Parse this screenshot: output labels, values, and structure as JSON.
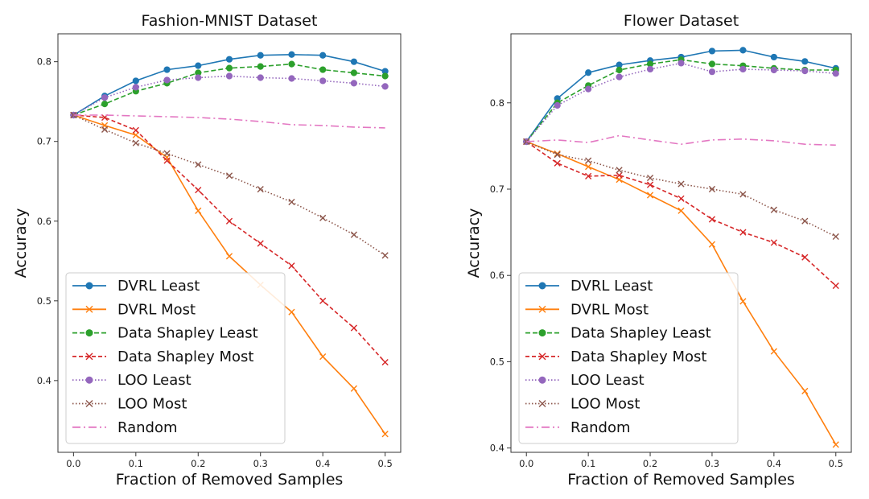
{
  "chart_data": [
    {
      "type": "line",
      "title": "Fashion-MNIST Dataset",
      "xlabel": "Fraction of Removed Samples",
      "ylabel": "Accuracy",
      "xlim": [
        -0.025,
        0.525
      ],
      "ylim": [
        0.31,
        0.835
      ],
      "xticks": [
        0.0,
        0.1,
        0.2,
        0.3,
        0.4,
        0.5
      ],
      "xtick_labels": [
        "0.0",
        "0.1",
        "0.2",
        "0.3",
        "0.4",
        "0.5"
      ],
      "yticks": [
        0.4,
        0.5,
        0.6,
        0.7,
        0.8
      ],
      "ytick_labels": [
        "0.4",
        "0.5",
        "0.6",
        "0.7",
        "0.8"
      ],
      "legend_position": "lower-left",
      "x": [
        0.0,
        0.05,
        0.1,
        0.15,
        0.2,
        0.25,
        0.3,
        0.35,
        0.4,
        0.45,
        0.5
      ],
      "series": [
        {
          "name": "DVRL Least",
          "values": [
            0.733,
            0.757,
            0.776,
            0.79,
            0.795,
            0.803,
            0.808,
            0.809,
            0.808,
            0.8,
            0.788
          ]
        },
        {
          "name": "DVRL Most",
          "values": [
            0.733,
            0.72,
            0.708,
            0.68,
            0.613,
            0.556,
            0.52,
            0.486,
            0.43,
            0.39,
            0.333
          ]
        },
        {
          "name": "Data Shapley Least",
          "values": [
            0.733,
            0.747,
            0.763,
            0.773,
            0.786,
            0.792,
            0.794,
            0.797,
            0.79,
            0.786,
            0.782
          ]
        },
        {
          "name": "Data Shapley Most",
          "values": [
            0.733,
            0.73,
            0.714,
            0.676,
            0.639,
            0.6,
            0.572,
            0.544,
            0.5,
            0.466,
            0.423
          ]
        },
        {
          "name": "LOO Least",
          "values": [
            0.733,
            0.755,
            0.768,
            0.777,
            0.78,
            0.782,
            0.78,
            0.779,
            0.776,
            0.773,
            0.769
          ]
        },
        {
          "name": "LOO Most",
          "values": [
            0.733,
            0.715,
            0.698,
            0.685,
            0.671,
            0.657,
            0.64,
            0.624,
            0.604,
            0.583,
            0.557
          ]
        },
        {
          "name": "Random",
          "values": [
            0.733,
            0.733,
            0.732,
            0.731,
            0.73,
            0.728,
            0.725,
            0.721,
            0.72,
            0.718,
            0.717
          ]
        }
      ]
    },
    {
      "type": "line",
      "title": "Flower Dataset",
      "xlabel": "Fraction of Removed Samples",
      "ylabel": "Accuracy",
      "xlim": [
        -0.025,
        0.525
      ],
      "ylim": [
        0.395,
        0.88
      ],
      "xticks": [
        0.0,
        0.1,
        0.2,
        0.3,
        0.4,
        0.5
      ],
      "xtick_labels": [
        "0.0",
        "0.1",
        "0.2",
        "0.3",
        "0.4",
        "0.5"
      ],
      "yticks": [
        0.4,
        0.5,
        0.6,
        0.7,
        0.8
      ],
      "ytick_labels": [
        "0.4",
        "0.5",
        "0.6",
        "0.7",
        "0.8"
      ],
      "legend_position": "lower-left",
      "x": [
        0.0,
        0.05,
        0.1,
        0.15,
        0.2,
        0.25,
        0.3,
        0.35,
        0.4,
        0.45,
        0.5
      ],
      "series": [
        {
          "name": "DVRL Least",
          "values": [
            0.755,
            0.805,
            0.835,
            0.844,
            0.849,
            0.853,
            0.86,
            0.861,
            0.853,
            0.848,
            0.84
          ]
        },
        {
          "name": "DVRL Most",
          "values": [
            0.755,
            0.741,
            0.726,
            0.711,
            0.693,
            0.675,
            0.636,
            0.57,
            0.512,
            0.466,
            0.404
          ]
        },
        {
          "name": "Data Shapley Least",
          "values": [
            0.755,
            0.8,
            0.82,
            0.838,
            0.845,
            0.85,
            0.845,
            0.843,
            0.84,
            0.838,
            0.838
          ]
        },
        {
          "name": "Data Shapley Most",
          "values": [
            0.755,
            0.73,
            0.715,
            0.716,
            0.705,
            0.689,
            0.665,
            0.65,
            0.638,
            0.621,
            0.588
          ]
        },
        {
          "name": "LOO Least",
          "values": [
            0.755,
            0.797,
            0.816,
            0.83,
            0.839,
            0.846,
            0.836,
            0.839,
            0.838,
            0.837,
            0.834
          ]
        },
        {
          "name": "LOO Most",
          "values": [
            0.755,
            0.74,
            0.733,
            0.722,
            0.713,
            0.706,
            0.7,
            0.694,
            0.676,
            0.663,
            0.645
          ]
        },
        {
          "name": "Random",
          "values": [
            0.755,
            0.757,
            0.754,
            0.762,
            0.757,
            0.752,
            0.757,
            0.758,
            0.756,
            0.752,
            0.751
          ]
        }
      ]
    }
  ],
  "series_styles": [
    {
      "color": "#1f77b4",
      "dash": "",
      "marker": "circle"
    },
    {
      "color": "#ff7f0e",
      "dash": "",
      "marker": "x"
    },
    {
      "color": "#2ca02c",
      "dash": "6 3",
      "marker": "circle"
    },
    {
      "color": "#d62728",
      "dash": "5 3",
      "marker": "x"
    },
    {
      "color": "#9467bd",
      "dash": "1.5 2.5",
      "marker": "circle"
    },
    {
      "color": "#8c564b",
      "dash": "1.5 2.5",
      "marker": "x"
    },
    {
      "color": "#e377c2",
      "dash": "10 4 2 4",
      "marker": "none"
    }
  ]
}
